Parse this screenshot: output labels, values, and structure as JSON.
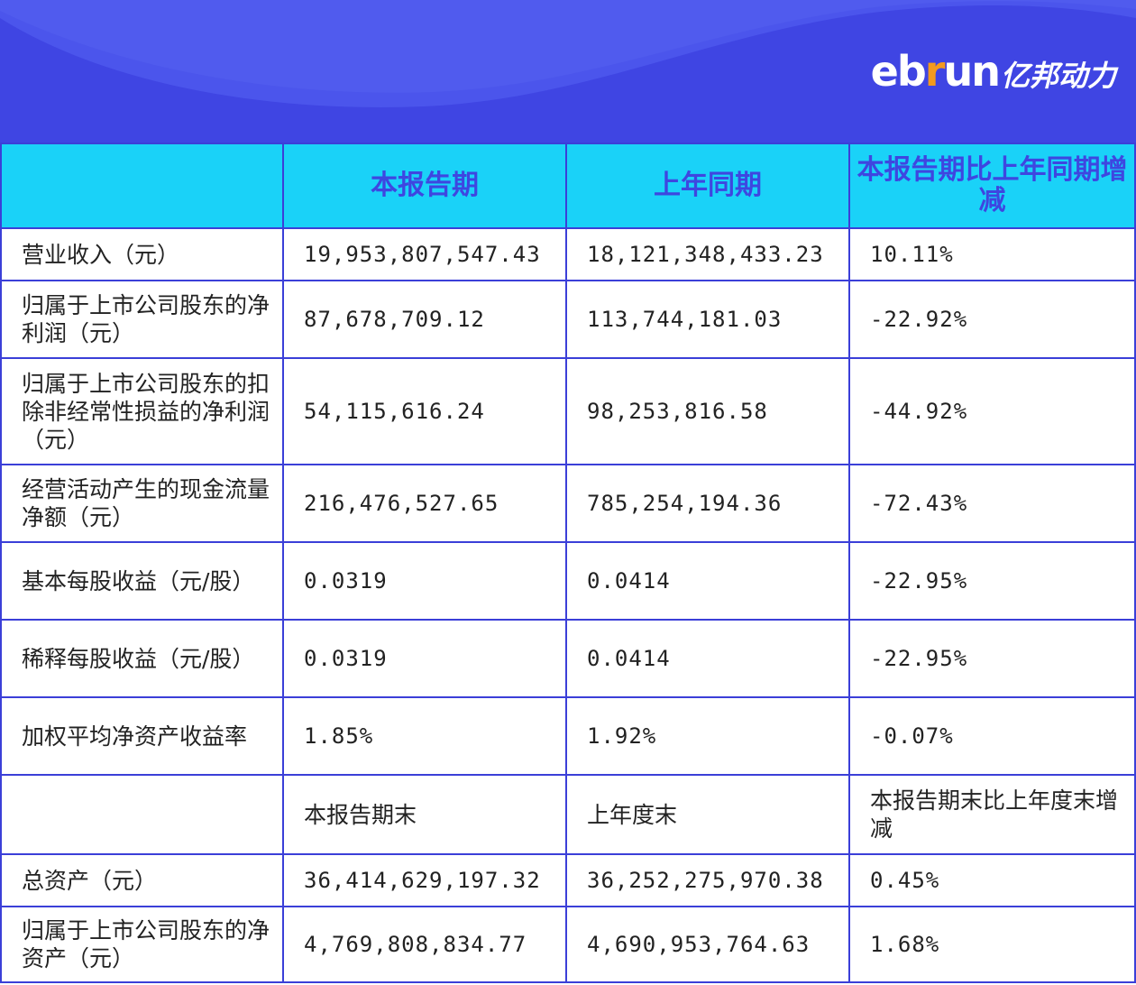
{
  "logo": {
    "latin_a": "eb",
    "latin_accent": "r",
    "latin_b": "un",
    "cn": "亿邦动力"
  },
  "colors": {
    "banner": "#3f45e3",
    "header": "#1ad2f8",
    "header_text": "#3e46e0",
    "border": "#3b3fd8",
    "logo_accent": "#f39a1e"
  },
  "table": {
    "headers": [
      "",
      "本报告期",
      "上年同期",
      "本报告期比上年同期增减"
    ],
    "rows": [
      {
        "label": "营业收入（元）",
        "cur": "19,953,807,547.43",
        "prev": "18,121,348,433.23",
        "chg": "10.11%"
      },
      {
        "label": "归属于上市公司股东的净利润（元）",
        "cur": "87,678,709.12",
        "prev": "113,744,181.03",
        "chg": "-22.92%"
      },
      {
        "label": "归属于上市公司股东的扣除非经常性损益的净利润（元）",
        "cur": "54,115,616.24",
        "prev": "98,253,816.58",
        "chg": "-44.92%"
      },
      {
        "label": "经营活动产生的现金流量净额（元）",
        "cur": "216,476,527.65",
        "prev": "785,254,194.36",
        "chg": "-72.43%"
      },
      {
        "label": "基本每股收益（元/股）",
        "cur": "0.0319",
        "prev": "0.0414",
        "chg": "-22.95%"
      },
      {
        "label": "稀释每股收益（元/股）",
        "cur": "0.0319",
        "prev": "0.0414",
        "chg": "-22.95%"
      },
      {
        "label": "加权平均净资产收益率",
        "cur": "1.85%",
        "prev": "1.92%",
        "chg": "-0.07%"
      },
      {
        "label": "",
        "cur": "本报告期末",
        "prev": "上年度末",
        "chg": "本报告期末比上年度末增减"
      },
      {
        "label": "总资产（元）",
        "cur": "36,414,629,197.32",
        "prev": "36,252,275,970.38",
        "chg": "0.45%"
      },
      {
        "label": "归属于上市公司股东的净资产（元）",
        "cur": "4,769,808,834.77",
        "prev": "4,690,953,764.63",
        "chg": "1.68%"
      }
    ]
  }
}
